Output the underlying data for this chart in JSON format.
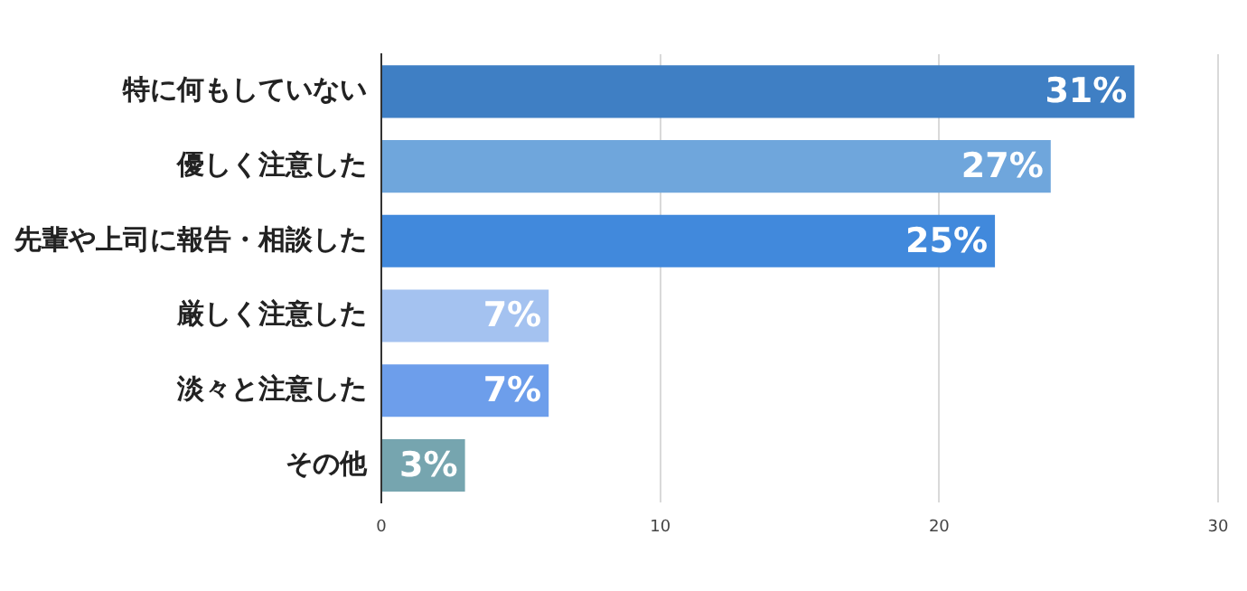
{
  "chart_data": {
    "type": "bar",
    "orientation": "horizontal",
    "categories": [
      "特に何もしていない",
      "優しく注意した",
      "先輩や上司に報告・相談した",
      "厳しく注意した",
      "淡々と注意した",
      "その他"
    ],
    "values": [
      27,
      24,
      22,
      6,
      6,
      3
    ],
    "colors": [
      "#3f7fc4",
      "#6fa6dc",
      "#4189dc",
      "#a4c2f0",
      "#6d9eeb",
      "#76a5af"
    ],
    "annotations": [
      {
        "text": "31%",
        "x": 27,
        "y": "特に何もしていない"
      },
      {
        "text": "27%",
        "x": 24,
        "y": "優しく注意した"
      },
      {
        "text": "25%",
        "x": 22,
        "y": "先輩や上司に報告・相談した"
      },
      {
        "text": "7%",
        "x": 6,
        "y": "厳しく注意した"
      },
      {
        "text": "7%",
        "x": 6,
        "y": "淡々と注意した"
      },
      {
        "text": "3%",
        "x": 3,
        "y": "その他"
      }
    ],
    "xlim": [
      0,
      30
    ],
    "xticks": [
      0,
      10,
      20,
      30
    ],
    "grid": "x",
    "legend": false
  }
}
